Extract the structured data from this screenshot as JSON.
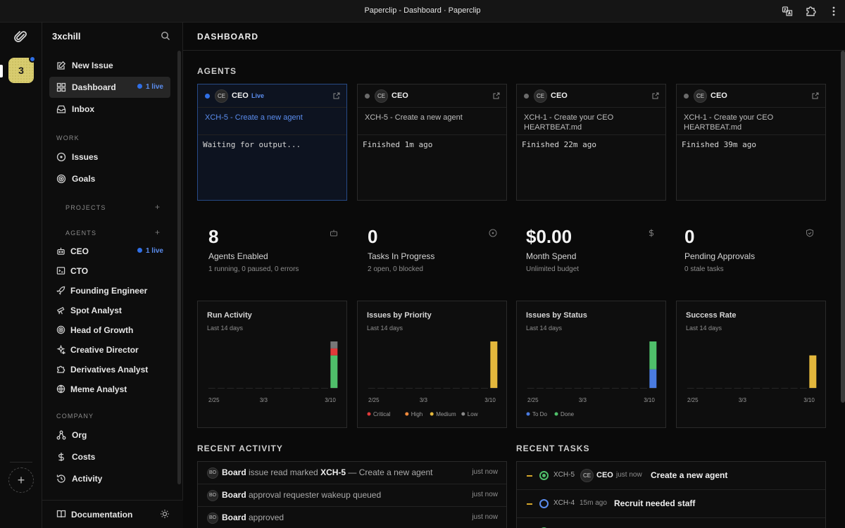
{
  "window": {
    "title": "Paperclip - Dashboard · Paperclip"
  },
  "rail": {
    "company_initial": "3"
  },
  "sidebar": {
    "org_name": "3xchill",
    "nav": [
      {
        "label": "New Issue",
        "icon": "edit-icon"
      },
      {
        "label": "Dashboard",
        "icon": "dashboard-icon",
        "badge": "1 live",
        "active": true
      },
      {
        "label": "Inbox",
        "icon": "inbox-icon"
      }
    ],
    "work_label": "WORK",
    "work_items": [
      {
        "label": "Issues",
        "icon": "circle-icon"
      },
      {
        "label": "Goals",
        "icon": "target-icon"
      }
    ],
    "projects_label": "PROJECTS",
    "agents_label": "AGENTS",
    "agents": [
      {
        "label": "CEO",
        "badge": "1 live"
      },
      {
        "label": "CTO"
      },
      {
        "label": "Founding Engineer"
      },
      {
        "label": "Spot Analyst"
      },
      {
        "label": "Head of Growth"
      },
      {
        "label": "Creative Director"
      },
      {
        "label": "Derivatives Analyst"
      },
      {
        "label": "Meme Analyst"
      }
    ],
    "company_label": "COMPANY",
    "company_items": [
      {
        "label": "Org",
        "icon": "org-icon"
      },
      {
        "label": "Costs",
        "icon": "dollar-icon"
      },
      {
        "label": "Activity",
        "icon": "history-icon"
      }
    ],
    "footer": {
      "documentation": "Documentation"
    }
  },
  "header": {
    "title": "DASHBOARD"
  },
  "agents_section": {
    "title": "AGENTS",
    "cards": [
      {
        "initials": "CE",
        "name": "CEO",
        "live_label": "Live",
        "task": "XCH-5 - Create a new agent",
        "output": "Waiting for output...",
        "live": true
      },
      {
        "initials": "CE",
        "name": "CEO",
        "task": "XCH-5 - Create a new agent",
        "output": "Finished 1m ago",
        "live": false
      },
      {
        "initials": "CE",
        "name": "CEO",
        "task": "XCH-1 - Create your CEO HEARTBEAT.md",
        "output": "Finished 22m ago",
        "live": false
      },
      {
        "initials": "CE",
        "name": "CEO",
        "task": "XCH-1 - Create your CEO HEARTBEAT.md",
        "output": "Finished 39m ago",
        "live": false
      }
    ]
  },
  "stats": [
    {
      "value": "8",
      "label": "Agents Enabled",
      "sub": "1 running, 0 paused, 0 errors",
      "icon": "bot-icon"
    },
    {
      "value": "0",
      "label": "Tasks In Progress",
      "sub": "2 open, 0 blocked",
      "icon": "clock-icon"
    },
    {
      "value": "$0.00",
      "label": "Month Spend",
      "sub": "Unlimited budget",
      "icon": "dollar-icon"
    },
    {
      "value": "0",
      "label": "Pending Approvals",
      "sub": "0 stale tasks",
      "icon": "shield-icon"
    }
  ],
  "chart_data": [
    {
      "type": "bar",
      "title": "Run Activity",
      "subtitle": "Last 14 days",
      "x_ticks": [
        "2/25",
        "3/3",
        "3/10"
      ],
      "stacked": true,
      "last_bar_segments": [
        {
          "color": "#4fbf6a",
          "value": 0.7
        },
        {
          "color": "#e03a3a",
          "value": 0.15
        },
        {
          "color": "#777777",
          "value": 0.15
        }
      ]
    },
    {
      "type": "bar",
      "title": "Issues by Priority",
      "subtitle": "Last 14 days",
      "x_ticks": [
        "2/25",
        "3/3",
        "3/10"
      ],
      "stacked": true,
      "legend": [
        {
          "label": "Critical",
          "color": "#e03a3a"
        },
        {
          "label": "High",
          "color": "#f08a3c"
        },
        {
          "label": "Medium",
          "color": "#e3b73c"
        },
        {
          "label": "Low",
          "color": "#8a8a8a"
        }
      ],
      "last_bar_segments": [
        {
          "color": "#e3b73c",
          "value": 1.0
        }
      ]
    },
    {
      "type": "bar",
      "title": "Issues by Status",
      "subtitle": "Last 14 days",
      "x_ticks": [
        "2/25",
        "3/3",
        "3/10"
      ],
      "stacked": true,
      "legend": [
        {
          "label": "To Do",
          "color": "#4a7be0"
        },
        {
          "label": "Done",
          "color": "#4fbf6a"
        }
      ],
      "last_bar_segments": [
        {
          "color": "#4a7be0",
          "value": 0.4
        },
        {
          "color": "#4fbf6a",
          "value": 0.6
        }
      ]
    },
    {
      "type": "bar",
      "title": "Success Rate",
      "subtitle": "Last 14 days",
      "x_ticks": [
        "2/25",
        "3/3",
        "3/10"
      ],
      "stacked": false,
      "last_bar_segments": [
        {
          "color": "#e3b73c",
          "value": 0.7
        }
      ]
    }
  ],
  "recent_activity": {
    "title": "RECENT ACTIVITY",
    "rows": [
      {
        "avatar": "BO",
        "actor": "Board",
        "text_pre": " issue read marked ",
        "ref": "XCH-5",
        "text_post": " — Create a new agent",
        "when": "just now"
      },
      {
        "avatar": "BO",
        "actor": "Board",
        "text_pre": " approval requester wakeup queued",
        "ref": "",
        "text_post": "",
        "when": "just now"
      },
      {
        "avatar": "BO",
        "actor": "Board",
        "text_pre": " approved",
        "ref": "",
        "text_post": "",
        "when": "just now"
      }
    ]
  },
  "recent_tasks": {
    "title": "RECENT TASKS",
    "rows": [
      {
        "id": "XCH-5",
        "avatar": "CE",
        "agent": "CEO",
        "when": "just now",
        "title": "Create a new agent",
        "status": "in_progress"
      },
      {
        "id": "XCH-4",
        "avatar": "",
        "agent": "",
        "when": "15m ago",
        "title": "Recruit needed staff",
        "status": "todo"
      }
    ]
  }
}
